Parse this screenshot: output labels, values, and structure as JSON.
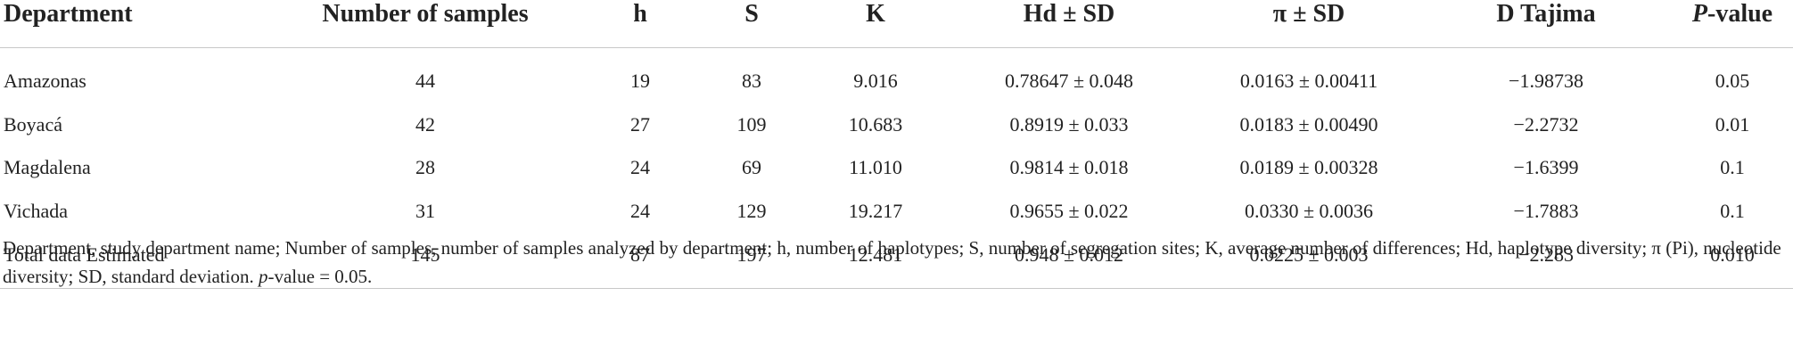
{
  "table": {
    "header": [
      "Department",
      "Number of samples",
      "h",
      "S",
      "K",
      "Hd ± SD",
      "π ± SD",
      "D Tajima",
      [
        "P",
        "-value"
      ]
    ],
    "rows": [
      [
        "Amazonas",
        "44",
        "19",
        "83",
        "9.016",
        "0.78647 ± 0.048",
        "0.0163 ± 0.00411",
        "−1.98738",
        "0.05"
      ],
      [
        "Boyacá",
        "42",
        "27",
        "109",
        "10.683",
        "0.8919 ± 0.033",
        "0.0183 ± 0.00490",
        "−2.2732",
        "0.01"
      ],
      [
        "Magdalena",
        "28",
        "24",
        "69",
        "11.010",
        "0.9814 ± 0.018",
        "0.0189 ± 0.00328",
        "−1.6399",
        "0.1"
      ],
      [
        "Vichada",
        "31",
        "24",
        "129",
        "19.217",
        "0.9655 ± 0.022",
        "0.0330 ± 0.0036",
        "−1.7883",
        "0.1"
      ],
      [
        "Total data Estimated",
        "145",
        "87",
        "197",
        "12.481",
        "0.948 ± 0.012",
        "0.0225 ± 0.003",
        "−2.283",
        "0.010"
      ]
    ],
    "footnote": [
      "Department, study department name; Number of samples, number of samples analyzed by department; h, number of haplotypes; S, number of segregation sites; K, average number of differences; Hd, haplotype diversity; π (Pi), nucleotide diversity; SD, standard deviation. ",
      "p",
      "-value = 0.05."
    ]
  }
}
